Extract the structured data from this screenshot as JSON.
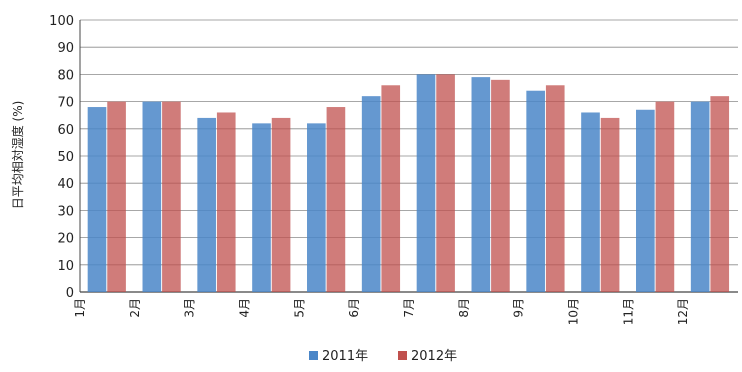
{
  "chart_data": {
    "type": "bar",
    "title": "",
    "xlabel": "",
    "ylabel": "日平均相対湿度 (%)",
    "ylim": [
      0,
      100
    ],
    "yticks": [
      0,
      10,
      20,
      30,
      40,
      50,
      60,
      70,
      80,
      90,
      100
    ],
    "grid": "horizontal",
    "legend_position": "bottom",
    "categories": [
      "1月",
      "2月",
      "3月",
      "4月",
      "5月",
      "6月",
      "7月",
      "8月",
      "9月",
      "10月",
      "11月",
      "12月"
    ],
    "series": [
      {
        "name": "2011年",
        "color": "#4a86c8",
        "values": [
          68,
          70,
          64,
          62,
          62,
          72,
          80,
          79,
          74,
          66,
          67,
          70
        ]
      },
      {
        "name": "2012年",
        "color": "#c0504d",
        "values": [
          70,
          70,
          66,
          64,
          68,
          76,
          80,
          78,
          76,
          64,
          70,
          72
        ]
      }
    ]
  }
}
